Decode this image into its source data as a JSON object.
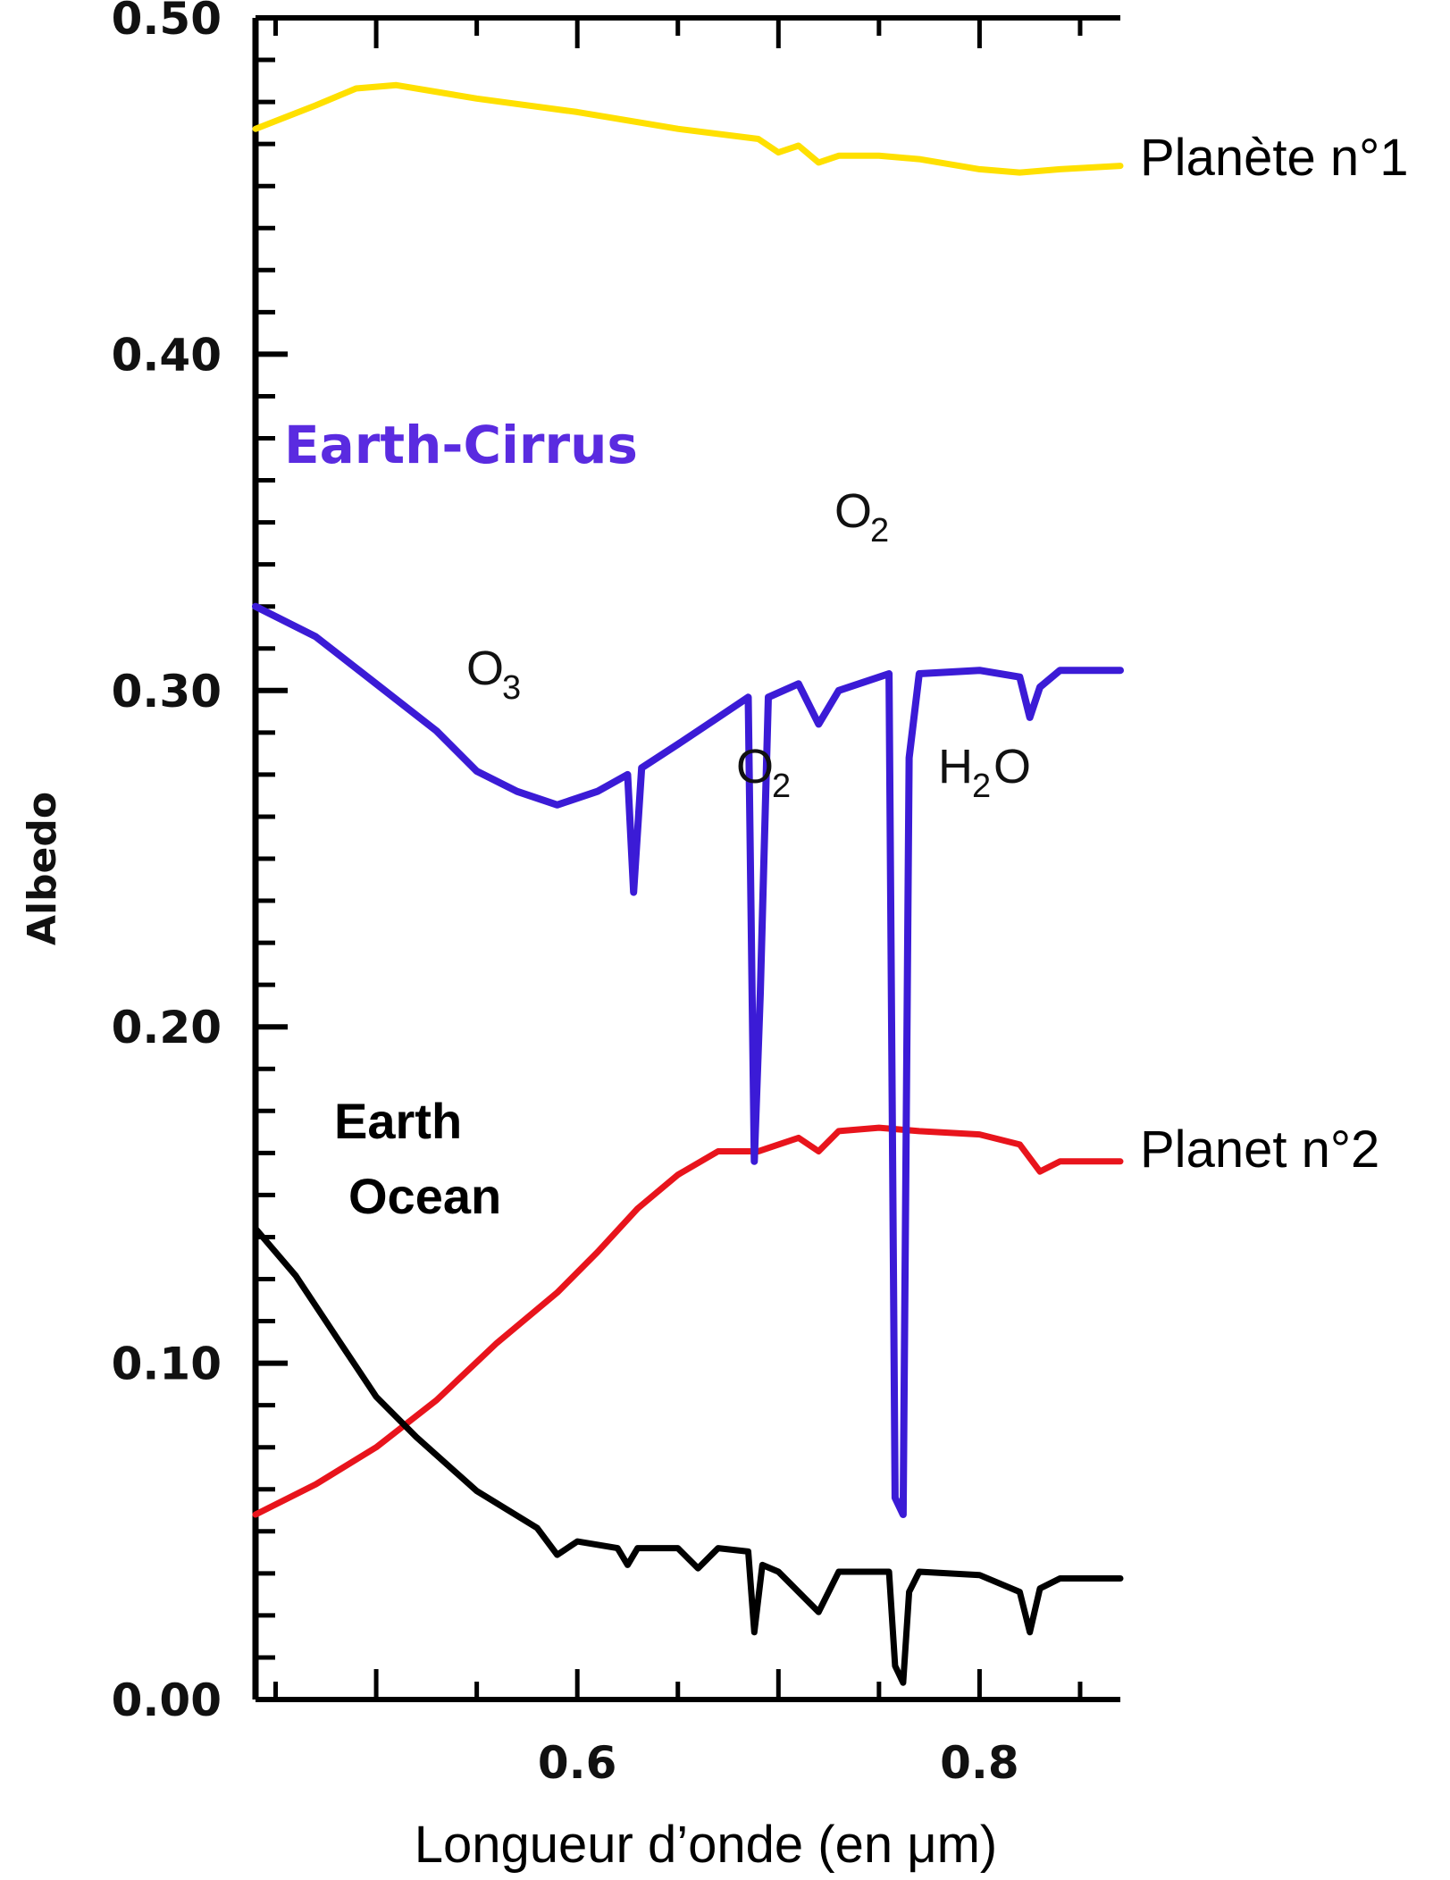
{
  "chart_data": {
    "type": "line",
    "title": "",
    "xlabel": "Longueur d’onde (en μm)",
    "ylabel": "Albedo",
    "xlim": [
      0.44,
      0.87
    ],
    "ylim": [
      0.0,
      0.5
    ],
    "x_ticks": [
      0.6,
      0.8
    ],
    "x_tick_labels": [
      "0.6",
      "0.8"
    ],
    "y_ticks": [
      0.0,
      0.1,
      0.2,
      0.3,
      0.4,
      0.5
    ],
    "y_tick_labels": [
      "0.00",
      "0.10",
      "0.20",
      "0.30",
      "0.40",
      "0.50"
    ],
    "grid": false,
    "series": [
      {
        "name": "Planète n°1",
        "color": "#ffe000",
        "points": [
          [
            0.44,
            0.467
          ],
          [
            0.47,
            0.474
          ],
          [
            0.49,
            0.479
          ],
          [
            0.51,
            0.48
          ],
          [
            0.55,
            0.476
          ],
          [
            0.6,
            0.472
          ],
          [
            0.65,
            0.467
          ],
          [
            0.69,
            0.464
          ],
          [
            0.7,
            0.46
          ],
          [
            0.71,
            0.462
          ],
          [
            0.72,
            0.457
          ],
          [
            0.73,
            0.459
          ],
          [
            0.75,
            0.459
          ],
          [
            0.77,
            0.458
          ],
          [
            0.8,
            0.455
          ],
          [
            0.82,
            0.454
          ],
          [
            0.84,
            0.455
          ],
          [
            0.87,
            0.456
          ]
        ]
      },
      {
        "name": "Planet n°2",
        "color": "#e8141c",
        "points": [
          [
            0.44,
            0.055
          ],
          [
            0.47,
            0.064
          ],
          [
            0.5,
            0.075
          ],
          [
            0.53,
            0.089
          ],
          [
            0.56,
            0.106
          ],
          [
            0.59,
            0.121
          ],
          [
            0.61,
            0.133
          ],
          [
            0.63,
            0.146
          ],
          [
            0.65,
            0.156
          ],
          [
            0.67,
            0.163
          ],
          [
            0.69,
            0.163
          ],
          [
            0.71,
            0.167
          ],
          [
            0.72,
            0.163
          ],
          [
            0.73,
            0.169
          ],
          [
            0.75,
            0.17
          ],
          [
            0.77,
            0.169
          ],
          [
            0.8,
            0.168
          ],
          [
            0.82,
            0.165
          ],
          [
            0.83,
            0.157
          ],
          [
            0.84,
            0.16
          ],
          [
            0.87,
            0.16
          ]
        ]
      },
      {
        "name": "Earth-Cirrus",
        "color": "#3b1bd6",
        "points": [
          [
            0.44,
            0.325
          ],
          [
            0.47,
            0.316
          ],
          [
            0.5,
            0.302
          ],
          [
            0.53,
            0.288
          ],
          [
            0.55,
            0.276
          ],
          [
            0.57,
            0.27
          ],
          [
            0.59,
            0.266
          ],
          [
            0.61,
            0.27
          ],
          [
            0.625,
            0.275
          ],
          [
            0.628,
            0.24
          ],
          [
            0.632,
            0.277
          ],
          [
            0.65,
            0.284
          ],
          [
            0.67,
            0.292
          ],
          [
            0.685,
            0.298
          ],
          [
            0.688,
            0.16
          ],
          [
            0.691,
            0.21
          ],
          [
            0.695,
            0.298
          ],
          [
            0.71,
            0.302
          ],
          [
            0.72,
            0.29
          ],
          [
            0.73,
            0.3
          ],
          [
            0.755,
            0.305
          ],
          [
            0.758,
            0.06
          ],
          [
            0.762,
            0.055
          ],
          [
            0.765,
            0.28
          ],
          [
            0.77,
            0.305
          ],
          [
            0.8,
            0.306
          ],
          [
            0.82,
            0.304
          ],
          [
            0.825,
            0.292
          ],
          [
            0.83,
            0.301
          ],
          [
            0.84,
            0.306
          ],
          [
            0.87,
            0.306
          ]
        ]
      },
      {
        "name": "Earth Ocean",
        "color": "#000000",
        "points": [
          [
            0.44,
            0.14
          ],
          [
            0.46,
            0.126
          ],
          [
            0.48,
            0.108
          ],
          [
            0.5,
            0.09
          ],
          [
            0.52,
            0.078
          ],
          [
            0.55,
            0.062
          ],
          [
            0.58,
            0.051
          ],
          [
            0.59,
            0.043
          ],
          [
            0.6,
            0.047
          ],
          [
            0.62,
            0.045
          ],
          [
            0.625,
            0.04
          ],
          [
            0.63,
            0.045
          ],
          [
            0.65,
            0.045
          ],
          [
            0.66,
            0.039
          ],
          [
            0.67,
            0.045
          ],
          [
            0.685,
            0.044
          ],
          [
            0.688,
            0.02
          ],
          [
            0.692,
            0.04
          ],
          [
            0.7,
            0.038
          ],
          [
            0.72,
            0.026
          ],
          [
            0.73,
            0.038
          ],
          [
            0.755,
            0.038
          ],
          [
            0.758,
            0.01
          ],
          [
            0.762,
            0.005
          ],
          [
            0.765,
            0.032
          ],
          [
            0.77,
            0.038
          ],
          [
            0.8,
            0.037
          ],
          [
            0.82,
            0.032
          ],
          [
            0.825,
            0.02
          ],
          [
            0.83,
            0.033
          ],
          [
            0.84,
            0.036
          ],
          [
            0.87,
            0.036
          ]
        ]
      }
    ],
    "annotations": [
      {
        "text": "Earth-Cirrus",
        "color": "#5a2be0"
      },
      {
        "text": "Earth",
        "line2": "Ocean"
      },
      {
        "text": "O",
        "sub": "3"
      },
      {
        "text": "O",
        "sub": "2",
        "pos": "upper"
      },
      {
        "text": "O",
        "sub": "2",
        "pos": "lower"
      },
      {
        "text": "H",
        "sub": "2",
        "after": "O"
      }
    ]
  }
}
